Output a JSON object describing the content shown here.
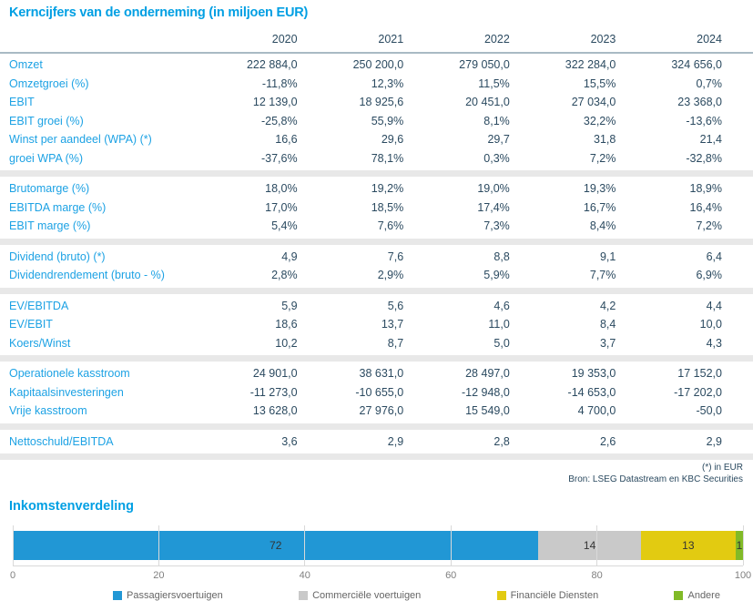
{
  "table": {
    "title": "Kerncijfers van de onderneming (in miljoen EUR)",
    "columns": [
      "2020",
      "2021",
      "2022",
      "2023",
      "2024"
    ],
    "sections": [
      {
        "rows": [
          {
            "label": "Omzet",
            "values": [
              "222 884,0",
              "250 200,0",
              "279 050,0",
              "322 284,0",
              "324 656,0"
            ]
          },
          {
            "label": "Omzetgroei (%)",
            "values": [
              "-11,8%",
              "12,3%",
              "11,5%",
              "15,5%",
              "0,7%"
            ]
          },
          {
            "label": "EBIT",
            "values": [
              "12 139,0",
              "18 925,6",
              "20 451,0",
              "27 034,0",
              "23 368,0"
            ]
          },
          {
            "label": "EBIT groei (%)",
            "values": [
              "-25,8%",
              "55,9%",
              "8,1%",
              "32,2%",
              "-13,6%"
            ]
          },
          {
            "label": "Winst per aandeel (WPA) (*)",
            "values": [
              "16,6",
              "29,6",
              "29,7",
              "31,8",
              "21,4"
            ]
          },
          {
            "label": "groei WPA (%)",
            "values": [
              "-37,6%",
              "78,1%",
              "0,3%",
              "7,2%",
              "-32,8%"
            ]
          }
        ]
      },
      {
        "rows": [
          {
            "label": "Brutomarge (%)",
            "values": [
              "18,0%",
              "19,2%",
              "19,0%",
              "19,3%",
              "18,9%"
            ]
          },
          {
            "label": "EBITDA marge (%)",
            "values": [
              "17,0%",
              "18,5%",
              "17,4%",
              "16,7%",
              "16,4%"
            ]
          },
          {
            "label": "EBIT marge (%)",
            "values": [
              "5,4%",
              "7,6%",
              "7,3%",
              "8,4%",
              "7,2%"
            ]
          }
        ]
      },
      {
        "rows": [
          {
            "label": "Dividend (bruto) (*)",
            "values": [
              "4,9",
              "7,6",
              "8,8",
              "9,1",
              "6,4"
            ]
          },
          {
            "label": "Dividendrendement (bruto - %)",
            "values": [
              "2,8%",
              "2,9%",
              "5,9%",
              "7,7%",
              "6,9%"
            ]
          }
        ]
      },
      {
        "rows": [
          {
            "label": "EV/EBITDA",
            "values": [
              "5,9",
              "5,6",
              "4,6",
              "4,2",
              "4,4"
            ]
          },
          {
            "label": "EV/EBIT",
            "values": [
              "18,6",
              "13,7",
              "11,0",
              "8,4",
              "10,0"
            ]
          },
          {
            "label": "Koers/Winst",
            "values": [
              "10,2",
              "8,7",
              "5,0",
              "3,7",
              "4,3"
            ]
          }
        ]
      },
      {
        "rows": [
          {
            "label": "Operationele kasstroom",
            "values": [
              "24 901,0",
              "38 631,0",
              "28 497,0",
              "19 353,0",
              "17 152,0"
            ]
          },
          {
            "label": "Kapitaalsinvesteringen",
            "values": [
              "-11 273,0",
              "-10 655,0",
              "-12 948,0",
              "-14 653,0",
              "-17 202,0"
            ]
          },
          {
            "label": "Vrije kasstroom",
            "values": [
              "13 628,0",
              "27 976,0",
              "15 549,0",
              "4 700,0",
              "-50,0"
            ]
          }
        ]
      },
      {
        "rows": [
          {
            "label": "Nettoschuld/EBITDA",
            "values": [
              "3,6",
              "2,9",
              "2,8",
              "2,6",
              "2,9"
            ]
          }
        ]
      }
    ],
    "footnotes": [
      "(*) in EUR",
      "Bron: LSEG Datastream en KBC Securities"
    ]
  },
  "chart_data": {
    "type": "bar",
    "variant": "horizontal-stacked",
    "title": "Inkomstenverdeling",
    "xlim": [
      0,
      100
    ],
    "x_ticks": [
      0,
      20,
      40,
      60,
      80,
      100
    ],
    "grid": true,
    "legend_position": "bottom",
    "series": [
      {
        "name": "Passagiersvoertuigen",
        "value": 72,
        "color": "#2197d5"
      },
      {
        "name": "Commerciële voertuigen",
        "value": 14,
        "color": "#c9c9c9"
      },
      {
        "name": "Financiële Diensten",
        "value": 13,
        "color": "#e2cb11"
      },
      {
        "name": "Andere",
        "value": 1,
        "color": "#81ba27"
      }
    ]
  },
  "colors": {
    "accent_blue": "#009fe3",
    "row_label_blue": "#1da2e4",
    "value_text": "#2b4a60",
    "separator_band": "#e8e8e8",
    "header_line": "#a9bac4",
    "grid_line": "#d9d9d9",
    "tick_text": "#808080",
    "legend_text": "#666666",
    "bar_label_text": "#333333"
  }
}
